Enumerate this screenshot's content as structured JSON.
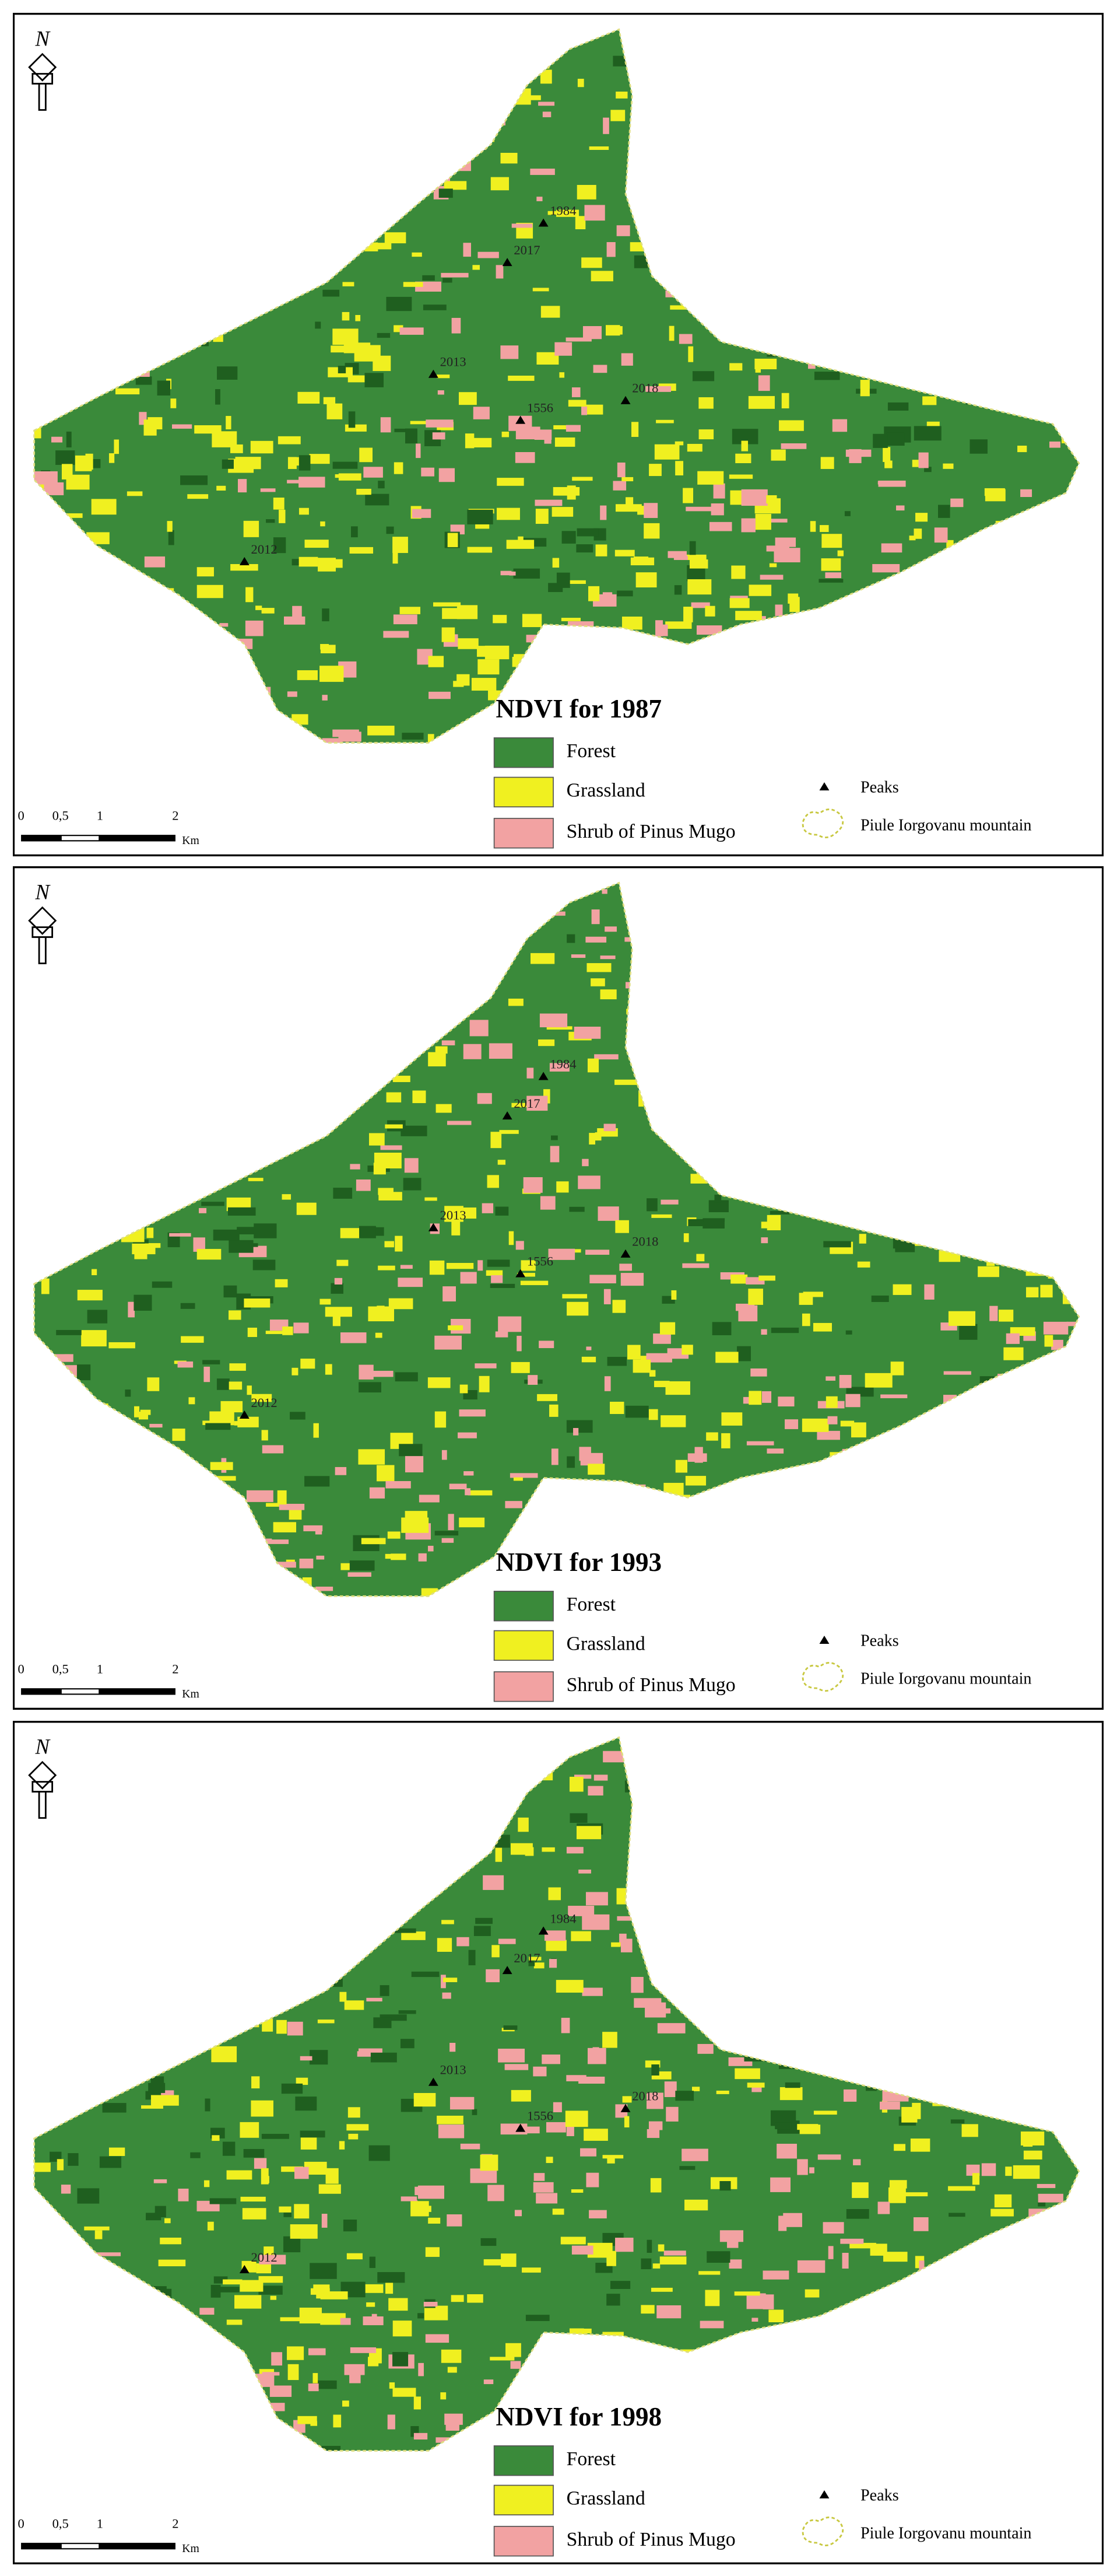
{
  "panels": [
    {
      "north": "N",
      "title": "NDVI for 1987",
      "legend": [
        {
          "label": "Forest",
          "color": "#3a8a3a"
        },
        {
          "label": "Grassland",
          "color": "#f0f020"
        },
        {
          "label": "Shrub of Pinus Mugo",
          "color": "#f2a2a2"
        }
      ],
      "symbols": [
        "Peaks",
        "Piule Iorgovanu mountain"
      ],
      "peaks": [
        "1984",
        "2017",
        "2013",
        "1556",
        "2018",
        "2012"
      ],
      "scale": {
        "ticks": [
          "0",
          "0,5",
          "1",
          "2"
        ],
        "unit": "Km"
      }
    },
    {
      "north": "N",
      "title": "NDVI for 1993",
      "legend": [
        {
          "label": "Forest",
          "color": "#3a8a3a"
        },
        {
          "label": "Grassland",
          "color": "#f0f020"
        },
        {
          "label": "Shrub of Pinus Mugo",
          "color": "#f2a2a2"
        }
      ],
      "symbols": [
        "Peaks",
        "Piule Iorgovanu mountain"
      ],
      "peaks": [
        "1984",
        "2017",
        "2013",
        "1556",
        "2018",
        "2012"
      ],
      "scale": {
        "ticks": [
          "0",
          "0,5",
          "1",
          "2"
        ],
        "unit": "Km"
      }
    },
    {
      "north": "N",
      "title": "NDVI for 1998",
      "legend": [
        {
          "label": "Forest",
          "color": "#3a8a3a"
        },
        {
          "label": "Grassland",
          "color": "#f0f020"
        },
        {
          "label": "Shrub of Pinus Mugo",
          "color": "#f2a2a2"
        }
      ],
      "symbols": [
        "Peaks",
        "Piule Iorgovanu mountain"
      ],
      "peaks": [
        "1984",
        "2017",
        "2013",
        "1556",
        "2018",
        "2012"
      ],
      "scale": {
        "ticks": [
          "0",
          "0,5",
          "1",
          "2"
        ],
        "unit": "Km"
      }
    }
  ]
}
